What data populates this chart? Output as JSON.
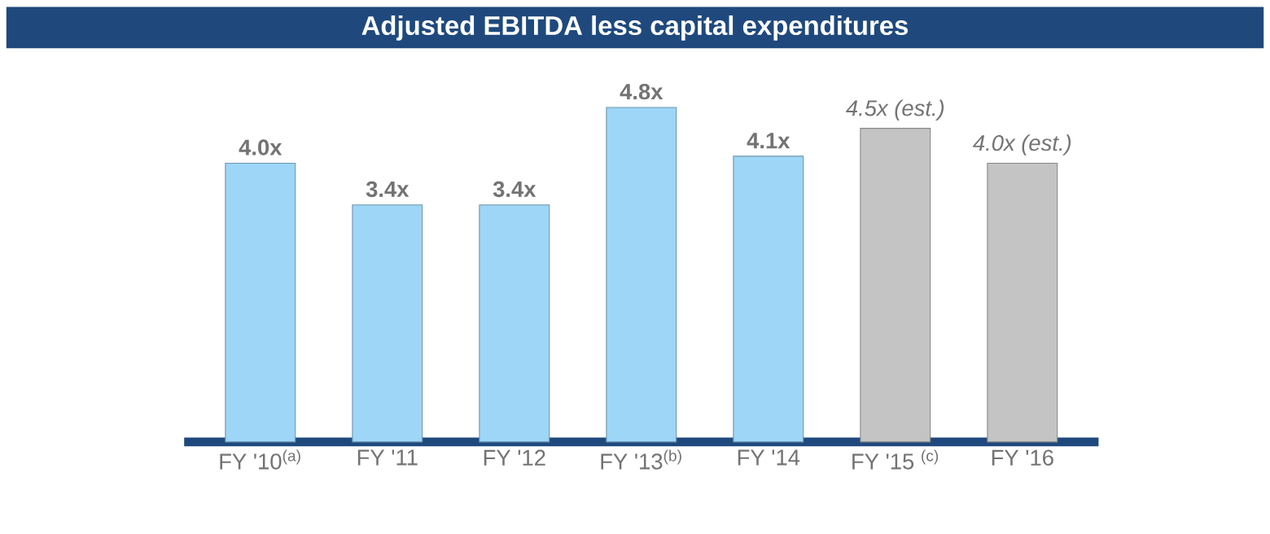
{
  "chart_data": {
    "type": "bar",
    "title": "Adjusted EBITDA less capital expenditures",
    "categories": [
      "FY '10$^{(a)}$",
      "FY '11",
      "FY '12",
      "FY '13$^{(b)}$",
      "FY '14",
      "FY '15 $^{(c)}$",
      "FY '16"
    ],
    "values": [
      4.0,
      3.4,
      3.4,
      4.8,
      4.1,
      4.5,
      4.0
    ],
    "colors": [
      "#9dd6f7",
      "#9dd6f7",
      "#9dd6f7",
      "#9dd6f7",
      "#9dd6f7",
      "#c4c4c4",
      "#c4c4c4"
    ],
    "value_labels": [
      "**4.0x**",
      "**3.4x**",
      "**3.4x**",
      "**4.8x**",
      "**4.1x**",
      "*4.5x (est.)*",
      "*4.0x (est.)*"
    ]
  }
}
